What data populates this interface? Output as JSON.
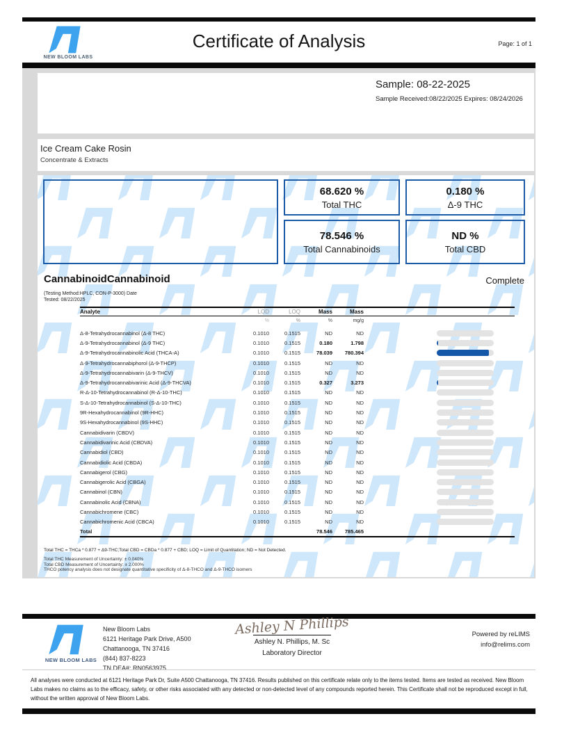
{
  "header": {
    "brand": "NEW BLOOM LABS",
    "title": "Certificate of Analysis",
    "page": "Page: 1 of 1"
  },
  "sample": {
    "name_line": "Sample: 08-22-2025",
    "received_line": "Sample Received:08/22/2025 Expires: 08/24/2026"
  },
  "product": {
    "name": "Ice Cream Cake Rosin",
    "category": "Concentrate & Extracts"
  },
  "summary": {
    "boxes": [
      {
        "value": "68.620 %",
        "label": "Total THC"
      },
      {
        "value": "0.180 %",
        "label": "Δ-9 THC"
      },
      {
        "value": "78.546 %",
        "label": "Total Cannabinoids"
      },
      {
        "value": "ND %",
        "label": "Total CBD"
      }
    ]
  },
  "cannabinoids": {
    "title": "CannabinoidCannabinoid",
    "status": "Complete",
    "method_line1": "(Testing Method:HPLC, CON-P-3000) Date",
    "method_line2": "Tested: 08/22/2025",
    "columns": {
      "analyte": "Analyte",
      "lod": "LOD",
      "loq": "LOQ",
      "mass_pct": "Mass",
      "mass_mgg": "Mass"
    },
    "units": {
      "lod": "%",
      "loq": "%",
      "mass_pct": "%",
      "mass_mgg": "mg/g"
    },
    "bar_scale_max": 85,
    "rows": [
      {
        "analyte": "Δ-8-Tetrahydrocannabinol (Δ-8 THC)",
        "lod": "0.1010",
        "loq": "0.1515",
        "mass_pct": "ND",
        "mass_mgg": "ND"
      },
      {
        "analyte": "Δ-9-Tetrahydrocannabinol (Δ-9 THC)",
        "lod": "0.1010",
        "loq": "0.1515",
        "mass_pct": "0.180",
        "mass_mgg": "1.798"
      },
      {
        "analyte": "Δ-9-Tetrahydrocannabinolic Acid (THCA-A)",
        "lod": "0.1010",
        "loq": "0.1515",
        "mass_pct": "78.039",
        "mass_mgg": "780.394"
      },
      {
        "analyte": "Δ-9-Tetrahydrocannabiphorol (Δ-9-THCP)",
        "lod": "0.1010",
        "loq": "0.1515",
        "mass_pct": "ND",
        "mass_mgg": "ND"
      },
      {
        "analyte": "Δ-9-Tetrahydrocannabivarin (Δ-9-THCV)",
        "lod": "0.1010",
        "loq": "0.1515",
        "mass_pct": "ND",
        "mass_mgg": "ND"
      },
      {
        "analyte": "Δ-9-Tetrahydrocannabivarinic Acid (Δ-9-THCVA)",
        "lod": "0.1010",
        "loq": "0.1515",
        "mass_pct": "0.327",
        "mass_mgg": "3.273"
      },
      {
        "analyte": "R-Δ-10-Tetrahydrocannabinol (R-Δ-10-THC)",
        "lod": "0.1010",
        "loq": "0.1515",
        "mass_pct": "ND",
        "mass_mgg": "ND"
      },
      {
        "analyte": "S-Δ-10-Tetrahydrocannabinol (S-Δ-10-THC)",
        "lod": "0.1010",
        "loq": "0.1515",
        "mass_pct": "ND",
        "mass_mgg": "ND"
      },
      {
        "analyte": "9R-Hexahydrocannabinol (9R-HHC)",
        "lod": "0.1010",
        "loq": "0.1515",
        "mass_pct": "ND",
        "mass_mgg": "ND"
      },
      {
        "analyte": "9S-Hexahydrocannabinol (9S-HHC)",
        "lod": "0.1010",
        "loq": "0.1515",
        "mass_pct": "ND",
        "mass_mgg": "ND"
      },
      {
        "analyte": "Cannabidivarin (CBDV)",
        "lod": "0.1010",
        "loq": "0.1515",
        "mass_pct": "ND",
        "mass_mgg": "ND"
      },
      {
        "analyte": "Cannabidivarinic Acid (CBDVA)",
        "lod": "0.1010",
        "loq": "0.1515",
        "mass_pct": "ND",
        "mass_mgg": "ND"
      },
      {
        "analyte": "Cannabidiol (CBD)",
        "lod": "0.1010",
        "loq": "0.1515",
        "mass_pct": "ND",
        "mass_mgg": "ND"
      },
      {
        "analyte": "Cannabidiolic Acid (CBDA)",
        "lod": "0.1010",
        "loq": "0.1515",
        "mass_pct": "ND",
        "mass_mgg": "ND"
      },
      {
        "analyte": "Cannabigerol (CBG)",
        "lod": "0.1010",
        "loq": "0.1515",
        "mass_pct": "ND",
        "mass_mgg": "ND"
      },
      {
        "analyte": "Cannabigerolic Acid (CBGA)",
        "lod": "0.1010",
        "loq": "0.1515",
        "mass_pct": "ND",
        "mass_mgg": "ND"
      },
      {
        "analyte": "Cannabinol (CBN)",
        "lod": "0.1010",
        "loq": "0.1515",
        "mass_pct": "ND",
        "mass_mgg": "ND"
      },
      {
        "analyte": "Cannabinolic Acid (CBNA)",
        "lod": "0.1010",
        "loq": "0.1515",
        "mass_pct": "ND",
        "mass_mgg": "ND"
      },
      {
        "analyte": "Cannabichromene (CBC)",
        "lod": "0.1010",
        "loq": "0.1515",
        "mass_pct": "ND",
        "mass_mgg": "ND"
      },
      {
        "analyte": "Cannabichromenic Acid (CBCA)",
        "lod": "0.1010",
        "loq": "0.1515",
        "mass_pct": "ND",
        "mass_mgg": "ND"
      }
    ],
    "total": {
      "label": "Total",
      "mass_pct": "78.546",
      "mass_mgg": "785.465"
    },
    "footnote": "Total THC = THCa * 0.877 + Δ9-THC;Total CBD = CBDa * 0.877 + CBD; LOQ = Limit of Quantitation; ND = Not Detected.",
    "notes": [
      "Total THC Measurement of Uncertainty: ± 0.040%",
      "Total CBD Measurement of Uncertainty: ± 2.000%",
      "THCO potency analysis does not designate quantitative specificity of Δ-8-THCO and Δ-9-THCO isomers"
    ]
  },
  "footer": {
    "brand": "NEW BLOOM LABS",
    "lab_lines": [
      "New Bloom Labs",
      "6121 Heritage Park Drive, A500",
      "Chattanooga, TN 37416",
      "(844) 837-8223",
      "TN DEA#: RN0563975"
    ],
    "signature": "Ashley N Phillips",
    "signer": "Ashley N. Phillips, M. Sc",
    "signer_title": "Laboratory Director",
    "powered_by": "Powered by reLIMS",
    "email": "info@relims.com",
    "disclaimer": "All analyses were conducted at 6121 Heritage Park Dr, Suite A500 Chattanooga, TN 37416. Results published on this certificate relate only to the items tested. Items are tested as received. New Bloom Labs makes no claims as to the efficacy, safety, or other risks associated with any detected or non-detected level of any compounds reported herein. This Certificate shall not be reproduced except in full, without the written approval of New Bloom Labs."
  },
  "colors": {
    "accent_blue": "#3ea3ee",
    "border_blue": "#1a5aa6",
    "bar_blue": "#1457a8",
    "watermark_blue": "#cfe7fa"
  }
}
